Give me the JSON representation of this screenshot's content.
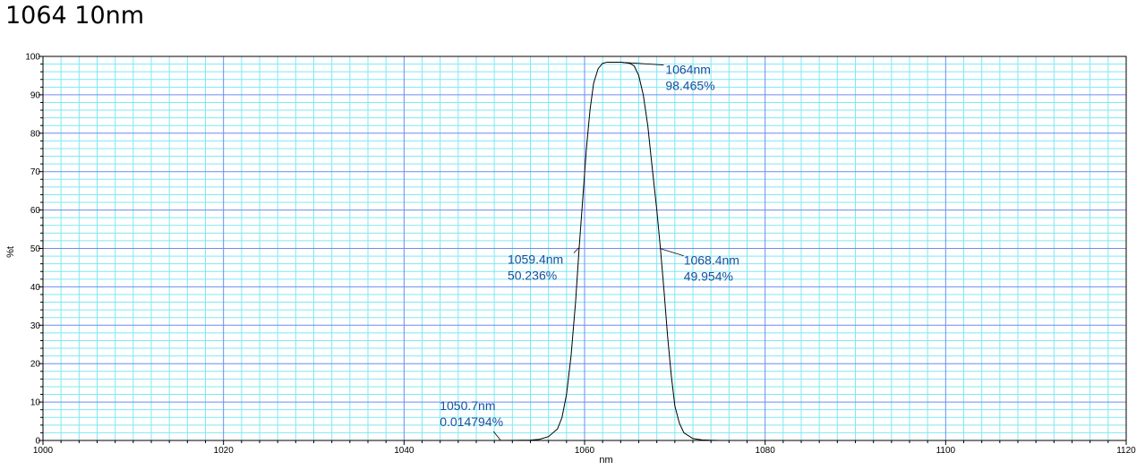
{
  "page_title": "1064 10nm",
  "colors": {
    "minor_grid": "#7fe8f2",
    "major_grid": "#6b8cf0",
    "curve": "#000000",
    "annotation": "#1a4fa0",
    "frame": "#000000"
  },
  "chart_data": {
    "type": "line",
    "title": "1064 10nm",
    "xlabel": "nm",
    "ylabel": "%t",
    "xlim": [
      1000,
      1120
    ],
    "ylim": [
      0,
      100
    ],
    "x_ticks": [
      "1000",
      "1020",
      "1040",
      "1060",
      "1080",
      "1100",
      "1120"
    ],
    "y_ticks": [
      "0",
      "10",
      "20",
      "30",
      "40",
      "50",
      "60",
      "70",
      "80",
      "90",
      "100"
    ],
    "grid": true,
    "series": [
      {
        "x": [
          1050,
          1052,
          1054,
          1055,
          1056,
          1057,
          1057.5,
          1058,
          1058.5,
          1059,
          1059.4,
          1059.8,
          1060.2,
          1060.6,
          1061,
          1061.5,
          1062,
          1062.5,
          1063,
          1064,
          1065,
          1065.5,
          1066,
          1066.5,
          1067,
          1067.4,
          1068,
          1068.4,
          1068.8,
          1069.2,
          1069.6,
          1070,
          1070.5,
          1071,
          1072,
          1073,
          1074,
          1075
        ],
        "y": [
          0,
          0.02,
          0.1,
          0.3,
          1,
          3,
          6,
          12,
          22,
          36,
          50.2,
          63,
          76,
          86,
          93,
          96.8,
          98.2,
          98.5,
          98.5,
          98.5,
          98.2,
          97.5,
          95,
          90,
          82,
          73,
          60,
          50,
          39,
          27,
          17,
          9,
          4.5,
          2,
          0.5,
          0.15,
          0.05,
          0
        ]
      }
    ],
    "annotations": [
      {
        "x": 1064,
        "y": 98.465,
        "line1": "1064nm",
        "line2": "98.465%"
      },
      {
        "x": 1059.4,
        "y": 50.236,
        "line1": "1059.4nm",
        "line2": "50.236%"
      },
      {
        "x": 1068.4,
        "y": 49.954,
        "line1": "1068.4nm",
        "line2": "49.954%"
      },
      {
        "x": 1050.7,
        "y": 0.014794,
        "line1": "1050.7nm",
        "line2": "0.014794%"
      }
    ]
  }
}
